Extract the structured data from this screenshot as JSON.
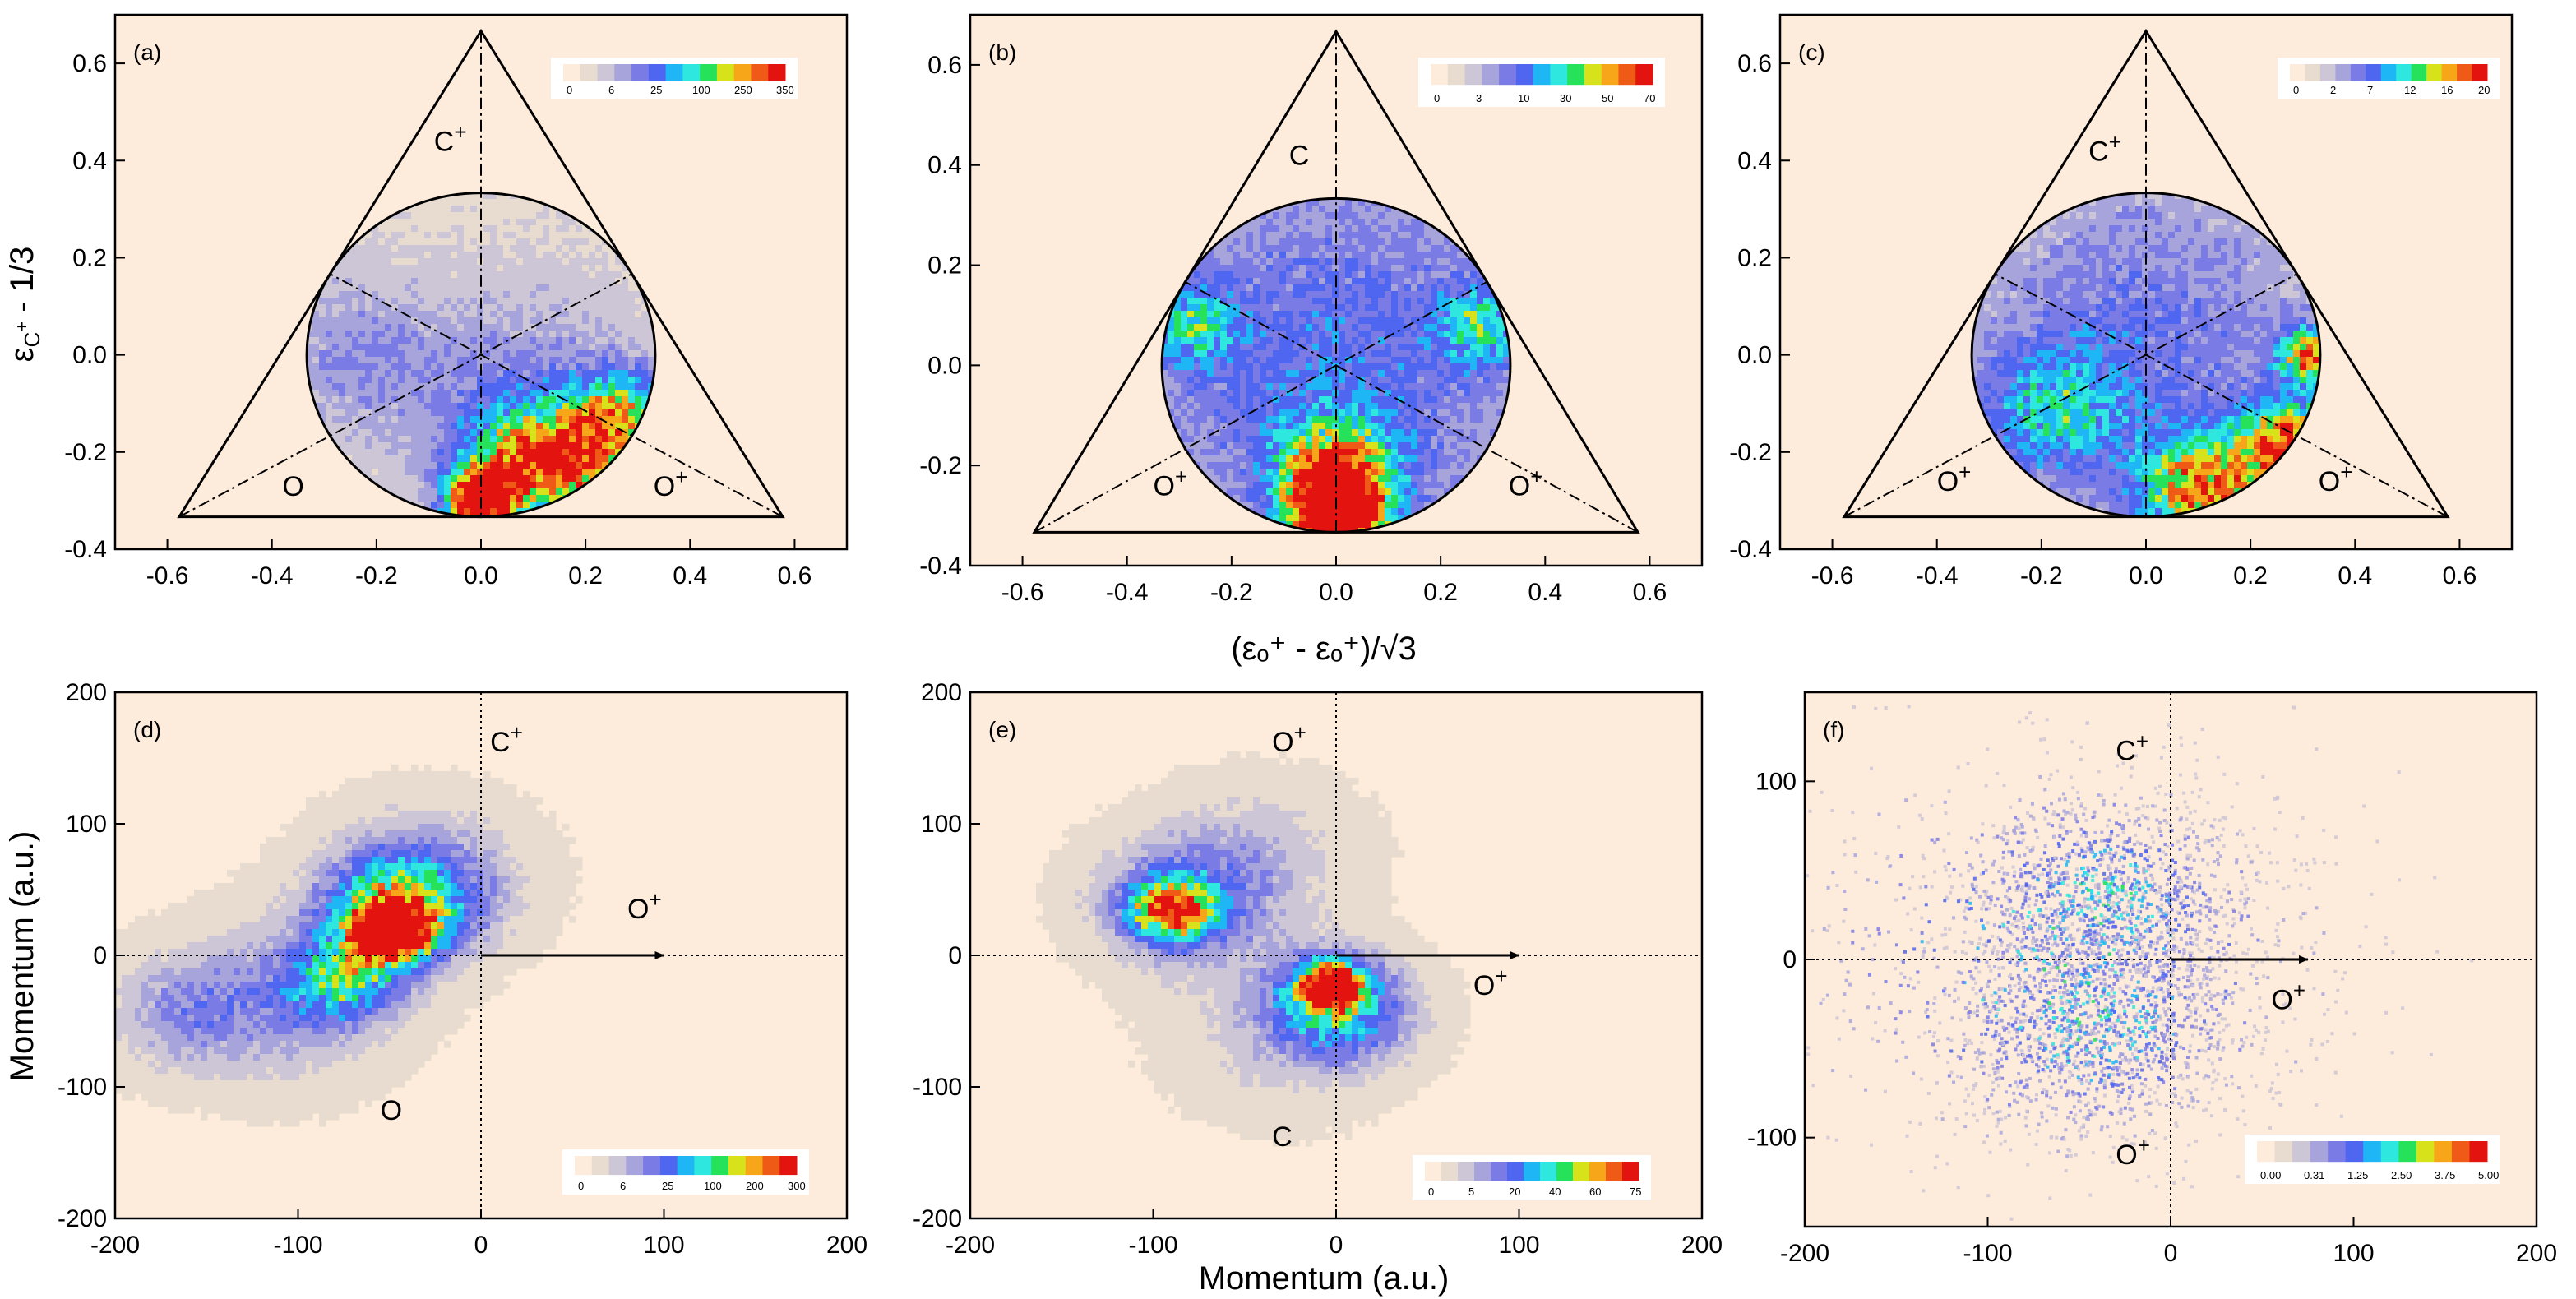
{
  "figure": {
    "xlabel_top": "(εₒ⁺ - εₒ⁺)/√3",
    "ylabel_top": "εC⁺ - 1/3",
    "xlabel_bottom": "Momentum (a.u.)",
    "ylabel_bottom": "Momentum (a.u.)"
  },
  "colors": {
    "background": "#fdebdb",
    "colormap": [
      "#fdebdb",
      "#e7dccf",
      "#cdc6d6",
      "#a7a4dc",
      "#7b7be6",
      "#4f66f0",
      "#1fb6f5",
      "#2ee8e0",
      "#26e25a",
      "#d8e21b",
      "#f7a61a",
      "#ef5a16",
      "#e3140f"
    ]
  },
  "chart_data": [
    {
      "panel": "(a)",
      "type": "heatmap",
      "subtype": "dalitz",
      "xlim": [
        -0.7,
        0.7
      ],
      "ylim": [
        -0.4,
        0.7
      ],
      "xticks": [
        -0.6,
        -0.4,
        -0.2,
        0.0,
        0.2,
        0.4,
        0.6
      ],
      "xticklabels": [
        "-0.6",
        "-0.4",
        "-0.2",
        "0.0",
        "0.2",
        "0.4",
        "0.6"
      ],
      "yticks": [
        -0.4,
        -0.2,
        0.0,
        0.2,
        0.4,
        0.6
      ],
      "yticklabels": [
        "-0.4",
        "-0.2",
        "0.0",
        "0.2",
        "0.4",
        "0.6"
      ],
      "ylabel": "εC⁺ - 1/3",
      "colorbar": [
        "0",
        "6",
        "25",
        "100",
        "250",
        "350"
      ],
      "annotations": [
        {
          "text": "C⁺",
          "x": -0.09,
          "y": 0.42
        },
        {
          "text": "O",
          "x": -0.38,
          "y": -0.29
        },
        {
          "text": "O⁺",
          "x": 0.33,
          "y": -0.29
        }
      ],
      "hotspots": [
        {
          "x": 0.0,
          "y": -0.3,
          "v": 1.0,
          "s": 0.045
        },
        {
          "x": 0.18,
          "y": -0.22,
          "v": 0.65,
          "s": 0.07
        },
        {
          "x": 0.27,
          "y": -0.12,
          "v": 0.55,
          "s": 0.06
        },
        {
          "x": 0.06,
          "y": -0.22,
          "v": 0.45,
          "s": 0.08
        },
        {
          "x": 0.1,
          "y": -0.1,
          "v": 0.22,
          "s": 0.16
        },
        {
          "x": -0.24,
          "y": 0.0,
          "v": 0.18,
          "s": 0.12
        }
      ]
    },
    {
      "panel": "(b)",
      "type": "heatmap",
      "subtype": "dalitz",
      "xlim": [
        -0.7,
        0.7
      ],
      "ylim": [
        -0.4,
        0.7
      ],
      "xticks": [
        -0.6,
        -0.4,
        -0.2,
        0.0,
        0.2,
        0.4,
        0.6
      ],
      "xticklabels": [
        "-0.6",
        "-0.4",
        "-0.2",
        "0.0",
        "0.2",
        "0.4",
        "0.6"
      ],
      "yticks": [
        -0.4,
        -0.2,
        0.0,
        0.2,
        0.4,
        0.6
      ],
      "yticklabels": [
        "-0.4",
        "-0.2",
        "0.0",
        "0.2",
        "0.4",
        "0.6"
      ],
      "xlabel": "(εO⁺ - εO⁺)/√3",
      "colorbar": [
        "0",
        "3",
        "10",
        "30",
        "50",
        "70"
      ],
      "annotations": [
        {
          "text": "C",
          "x": -0.09,
          "y": 0.4
        },
        {
          "text": "O⁺",
          "x": -0.35,
          "y": -0.26
        },
        {
          "text": "O⁺",
          "x": 0.33,
          "y": -0.26
        }
      ],
      "hotspots": [
        {
          "x": 0.0,
          "y": -0.3,
          "v": 1.0,
          "s": 0.06
        },
        {
          "x": 0.0,
          "y": -0.22,
          "v": 0.55,
          "s": 0.08
        },
        {
          "x": 0.0,
          "y": 0.0,
          "v": 0.3,
          "s": 0.3
        },
        {
          "x": -0.28,
          "y": 0.08,
          "v": 0.35,
          "s": 0.06
        },
        {
          "x": 0.28,
          "y": 0.08,
          "v": 0.35,
          "s": 0.06
        }
      ]
    },
    {
      "panel": "(c)",
      "type": "heatmap",
      "subtype": "dalitz",
      "xlim": [
        -0.7,
        0.7
      ],
      "ylim": [
        -0.4,
        0.7
      ],
      "xticks": [
        -0.6,
        -0.4,
        -0.2,
        0.0,
        0.2,
        0.4,
        0.6
      ],
      "xticklabels": [
        "-0.6",
        "-0.4",
        "-0.2",
        "0.0",
        "0.2",
        "0.4",
        "0.6"
      ],
      "yticks": [
        -0.4,
        -0.2,
        0.0,
        0.2,
        0.4,
        0.6
      ],
      "yticklabels": [
        "-0.4",
        "-0.2",
        "0.0",
        "0.2",
        "0.4",
        "0.6"
      ],
      "colorbar": [
        "0",
        "2",
        "7",
        "12",
        "16",
        "20"
      ],
      "annotations": [
        {
          "text": "C⁺",
          "x": -0.11,
          "y": 0.4
        },
        {
          "text": "O⁺",
          "x": -0.4,
          "y": -0.28
        },
        {
          "text": "O⁺",
          "x": 0.33,
          "y": -0.28
        }
      ],
      "hotspots": [
        {
          "x": 0.28,
          "y": -0.2,
          "v": 0.85,
          "s": 0.07
        },
        {
          "x": 0.1,
          "y": -0.28,
          "v": 0.7,
          "s": 0.08
        },
        {
          "x": 0.31,
          "y": 0.0,
          "v": 0.7,
          "s": 0.04
        },
        {
          "x": -0.18,
          "y": -0.12,
          "v": 0.35,
          "s": 0.1
        },
        {
          "x": 0.0,
          "y": 0.05,
          "v": 0.25,
          "s": 0.25
        }
      ]
    },
    {
      "panel": "(d)",
      "type": "heatmap",
      "subtype": "newton",
      "xlim": [
        -200,
        200
      ],
      "ylim": [
        -200,
        200
      ],
      "xticks": [
        -200,
        -100,
        0,
        100,
        200
      ],
      "xticklabels": [
        "-200",
        "-100",
        "0",
        "100",
        "200"
      ],
      "yticks": [
        -200,
        -100,
        0,
        100,
        200
      ],
      "yticklabels": [
        "-200",
        "-100",
        "0",
        "100",
        "200"
      ],
      "ylabel": "Momentum (a.u.)",
      "colorbar": [
        "0",
        "6",
        "25",
        "100",
        "200",
        "300"
      ],
      "arrow_end": 100,
      "annotations": [
        {
          "text": "C⁺",
          "x": 5,
          "y": 155
        },
        {
          "text": "O⁺",
          "x": 80,
          "y": 28
        },
        {
          "text": "O",
          "x": -55,
          "y": -125
        }
      ],
      "hotspots": [
        {
          "x": -50,
          "y": 18,
          "v": 1.0,
          "s": 14
        },
        {
          "x": -45,
          "y": 35,
          "v": 0.6,
          "s": 28
        },
        {
          "x": -30,
          "y": 60,
          "v": 0.25,
          "s": 40
        },
        {
          "x": -75,
          "y": -20,
          "v": 0.45,
          "s": 22
        },
        {
          "x": -110,
          "y": -35,
          "v": 0.25,
          "s": 45
        },
        {
          "x": -165,
          "y": -45,
          "v": 0.2,
          "s": 30
        }
      ]
    },
    {
      "panel": "(e)",
      "type": "heatmap",
      "subtype": "newton",
      "xlim": [
        -200,
        200
      ],
      "ylim": [
        -200,
        200
      ],
      "xticks": [
        -200,
        -100,
        0,
        100,
        200
      ],
      "xticklabels": [
        "-200",
        "-100",
        "0",
        "100",
        "200"
      ],
      "yticks": [
        -200,
        -100,
        0,
        100,
        200
      ],
      "yticklabels": [
        "-200",
        "-100",
        "0",
        "100",
        "200"
      ],
      "xlabel": "Momentum (a.u.)",
      "colorbar": [
        "0",
        "5",
        "20",
        "40",
        "60",
        "75"
      ],
      "arrow_end": 100,
      "annotations": [
        {
          "text": "O⁺",
          "x": -35,
          "y": 155
        },
        {
          "text": "O⁺",
          "x": 75,
          "y": -30
        },
        {
          "text": "C",
          "x": -35,
          "y": -145
        }
      ],
      "hotspots": [
        {
          "x": -3,
          "y": -22,
          "v": 1.0,
          "s": 12
        },
        {
          "x": 2,
          "y": -40,
          "v": 0.5,
          "s": 28
        },
        {
          "x": -90,
          "y": 35,
          "v": 0.7,
          "s": 16
        },
        {
          "x": -85,
          "y": 40,
          "v": 0.35,
          "s": 35
        },
        {
          "x": -40,
          "y": 80,
          "v": 0.15,
          "s": 40
        },
        {
          "x": -30,
          "y": -60,
          "v": 0.15,
          "s": 45
        }
      ]
    },
    {
      "panel": "(f)",
      "type": "heatmap",
      "subtype": "newton-scatter",
      "xlim": [
        -200,
        200
      ],
      "ylim": [
        -150,
        150
      ],
      "xticks": [
        -200,
        -100,
        0,
        100,
        200
      ],
      "xticklabels": [
        "-200",
        "-100",
        "0",
        "100",
        "200"
      ],
      "yticks": [
        -100,
        0,
        100
      ],
      "yticklabels": [
        "-100",
        "0",
        "100"
      ],
      "colorbar": [
        "0.00",
        "0.31",
        "1.25",
        "2.50",
        "3.75",
        "5.00"
      ],
      "arrow_end": 75,
      "annotations": [
        {
          "text": "C⁺",
          "x": -30,
          "y": 112
        },
        {
          "text": "O⁺",
          "x": 55,
          "y": -28
        },
        {
          "text": "O⁺",
          "x": -30,
          "y": -115
        }
      ],
      "clusters": [
        {
          "x": -35,
          "y": 32,
          "sx": 42,
          "sy": 32,
          "n": 1300
        },
        {
          "x": -40,
          "y": -38,
          "sx": 42,
          "sy": 32,
          "n": 1300
        },
        {
          "x": -60,
          "y": 0,
          "sx": 75,
          "sy": 55,
          "n": 800
        }
      ]
    }
  ]
}
